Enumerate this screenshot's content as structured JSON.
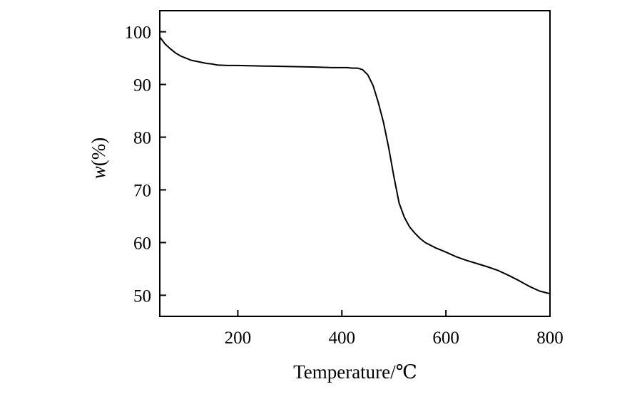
{
  "chart_data": {
    "type": "line",
    "title": "",
    "xlabel": "Temperature/℃",
    "ylabel_italic": "w",
    "ylabel_rest": "(%)",
    "xlim": [
      50,
      800
    ],
    "ylim": [
      46,
      104
    ],
    "xticks": [
      200,
      400,
      600,
      800
    ],
    "yticks": [
      50,
      60,
      70,
      80,
      90,
      100
    ],
    "grid": false,
    "legend": "none",
    "colors": {
      "line": "#000000",
      "frame": "#000000"
    },
    "series": [
      {
        "x": [
          50,
          60,
          70,
          80,
          90,
          100,
          110,
          120,
          130,
          140,
          150,
          160,
          180,
          200,
          250,
          300,
          350,
          380,
          400,
          410,
          420,
          430,
          440,
          450,
          460,
          470,
          480,
          490,
          500,
          510,
          520,
          530,
          540,
          550,
          560,
          570,
          580,
          600,
          620,
          640,
          660,
          680,
          700,
          720,
          740,
          760,
          780,
          800
        ],
        "y": [
          99.0,
          97.7,
          96.8,
          96.0,
          95.4,
          95.0,
          94.6,
          94.4,
          94.2,
          94.0,
          93.9,
          93.7,
          93.6,
          93.6,
          93.5,
          93.4,
          93.3,
          93.2,
          93.2,
          93.2,
          93.1,
          93.1,
          92.8,
          91.8,
          89.8,
          86.6,
          82.8,
          78.0,
          72.5,
          67.5,
          64.8,
          63.0,
          61.8,
          60.8,
          60.0,
          59.5,
          59.0,
          58.2,
          57.3,
          56.6,
          56.0,
          55.4,
          54.7,
          53.8,
          52.8,
          51.7,
          50.8,
          50.3
        ]
      }
    ]
  }
}
